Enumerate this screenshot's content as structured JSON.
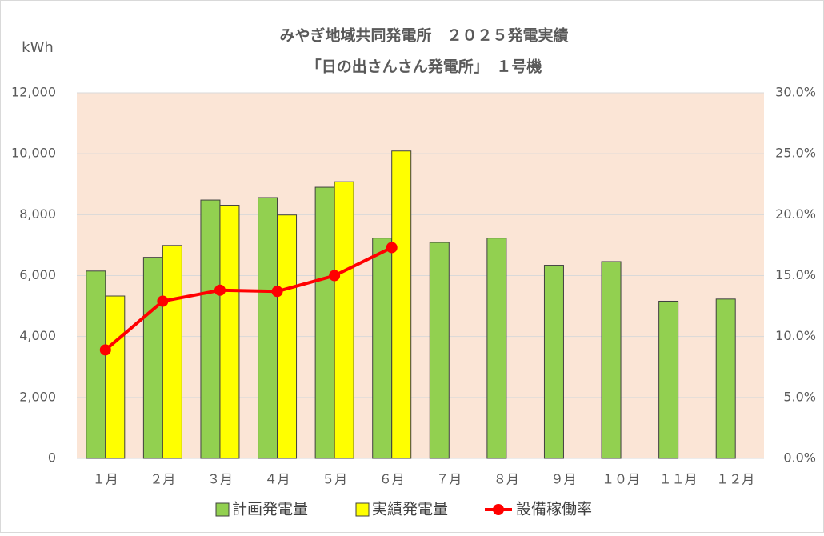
{
  "chart_data": {
    "type": "bar",
    "title": [
      "みやぎ地域共同発電所　２０２５発電実績",
      "「日の出さんさん発電所」　１号機"
    ],
    "y_label": "kWh",
    "categories": [
      "１月",
      "２月",
      "３月",
      "４月",
      "５月",
      "６月",
      "７月",
      "８月",
      "９月",
      "１０月",
      "１１月",
      "１２月"
    ],
    "series": [
      {
        "name": "計画発電量",
        "type": "bar",
        "color": "#92d050",
        "values": [
          6150,
          6600,
          8480,
          8560,
          8900,
          7230,
          7090,
          7230,
          6340,
          6460,
          5160,
          5230
        ]
      },
      {
        "name": "実績発電量",
        "type": "bar",
        "color": "#ffff00",
        "values": [
          5330,
          6990,
          8310,
          7990,
          9080,
          10090,
          null,
          null,
          null,
          null,
          null,
          null
        ]
      },
      {
        "name": "設備稼働率",
        "type": "line",
        "axis": "y2",
        "color": "#ff0000",
        "values": [
          8.9,
          12.9,
          13.8,
          13.7,
          15.0,
          17.3,
          null,
          null,
          null,
          null,
          null,
          null
        ]
      }
    ],
    "ylim": [
      0,
      12000
    ],
    "yticks": [
      0,
      {
        "value": 2000,
        "label": "2,000"
      },
      {
        "value": 4000,
        "label": "4,000"
      },
      {
        "value": 6000,
        "label": "6,000"
      },
      {
        "value": 8000,
        "label": "8,000"
      },
      {
        "value": 10000,
        "label": "10,000"
      },
      {
        "value": 12000,
        "label": "12,000"
      }
    ],
    "y2lim": [
      0,
      30
    ],
    "y2ticks": [
      {
        "value": 0,
        "label": "0.0%"
      },
      {
        "value": 5,
        "label": "5.0%"
      },
      {
        "value": 10,
        "label": "10.0%"
      },
      {
        "value": 15,
        "label": "15.0%"
      },
      {
        "value": 20,
        "label": "20.0%"
      },
      {
        "value": 25,
        "label": "25.0%"
      },
      {
        "value": 30,
        "label": "30.0%"
      }
    ],
    "grid": true,
    "plot_background": "#fbe5d6",
    "legend": "bottom"
  }
}
